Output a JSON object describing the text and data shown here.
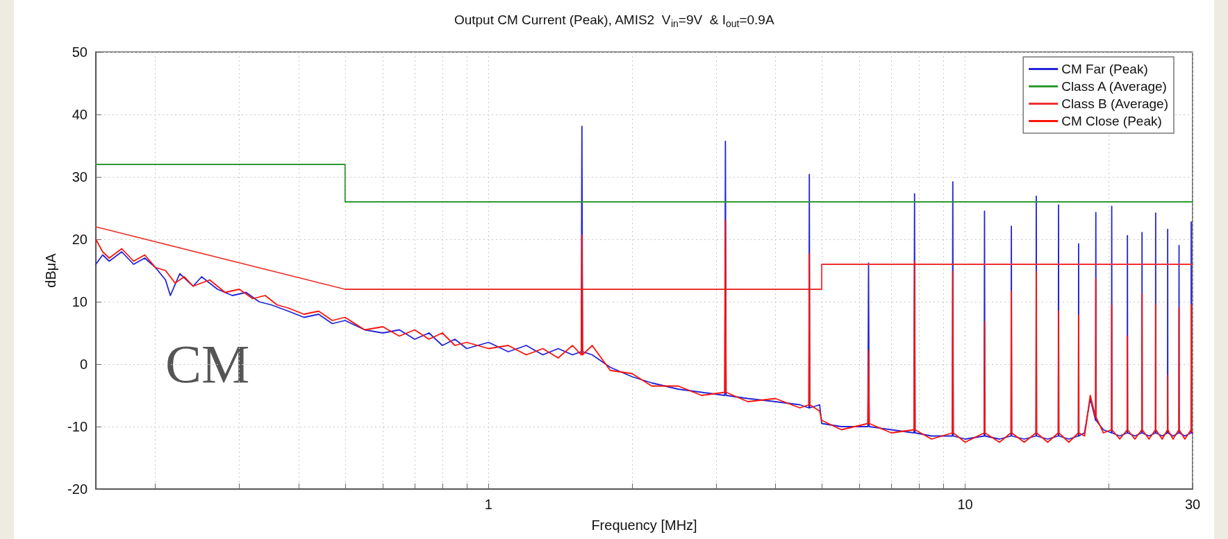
{
  "chart_data": {
    "type": "line",
    "title": "Output CM Current (Peak), AMIS2  V$_{in}$=9V  & I$_{out}$=0.9A",
    "xlabel": "Frequency [MHz]",
    "ylabel": "dBμA",
    "log": "x",
    "grid": true,
    "legend": "top right",
    "xlim": [
      0.15,
      30
    ],
    "xticks": [
      {
        "value": 0.2,
        "label": null
      },
      {
        "value": 0.3,
        "label": null
      },
      {
        "value": 0.4,
        "label": null
      },
      {
        "value": 0.5,
        "label": null
      },
      {
        "value": 0.6,
        "label": null
      },
      {
        "value": 0.7,
        "label": null
      },
      {
        "value": 0.8,
        "label": null
      },
      {
        "value": 0.9,
        "label": null
      },
      1,
      {
        "value": 2,
        "label": null
      },
      {
        "value": 3,
        "label": null
      },
      {
        "value": 4,
        "label": null
      },
      {
        "value": 5,
        "label": null
      },
      {
        "value": 6,
        "label": null
      },
      {
        "value": 7,
        "label": null
      },
      {
        "value": 8,
        "label": null
      },
      {
        "value": 9,
        "label": null
      },
      10,
      {
        "value": 20,
        "label": null
      },
      30
    ],
    "ylim": [
      -20,
      50
    ],
    "yticks": [
      -20,
      -10,
      0,
      10,
      20,
      30,
      40,
      50
    ],
    "annotations": [
      "CM"
    ],
    "series": [
      {
        "name": "CM Far (Peak)",
        "color": "#2323d8",
        "x": [
          0.15,
          0.155,
          0.16,
          0.17,
          0.18,
          0.19,
          0.2,
          0.21,
          0.215,
          0.225,
          0.24,
          0.25,
          0.27,
          0.29,
          0.31,
          0.33,
          0.35,
          0.38,
          0.41,
          0.44,
          0.47,
          0.5,
          0.55,
          0.6,
          0.65,
          0.7,
          0.75,
          0.8,
          0.85,
          0.9,
          1.0,
          1.1,
          1.2,
          1.3,
          1.4,
          1.5,
          1.565,
          1.57,
          1.575,
          1.65,
          1.8,
          2.0,
          2.2,
          2.5,
          2.8,
          3.13,
          3.14,
          3.15,
          3.5,
          4.0,
          4.5,
          4.7,
          4.71,
          4.72,
          4.95,
          5.0,
          5.5,
          6.25,
          6.27,
          6.29,
          7.0,
          7.81,
          7.83,
          7.85,
          8.5,
          9.4,
          9.42,
          9.44,
          10.0,
          10.96,
          10.98,
          11.0,
          11.8,
          12.48,
          12.5,
          12.52,
          13.3,
          14.08,
          14.1,
          14.12,
          14.9,
          15.68,
          15.7,
          15.72,
          16.5,
          17.28,
          17.3,
          17.32,
          17.8,
          18.3,
          18.78,
          18.8,
          18.82,
          19.5,
          20.28,
          20.3,
          20.32,
          21.1,
          21.88,
          21.9,
          21.92,
          22.7,
          23.48,
          23.5,
          23.52,
          24.3,
          25.08,
          25.1,
          25.12,
          25.9,
          26.58,
          26.6,
          26.62,
          27.3,
          28.08,
          28.1,
          28.12,
          28.9,
          29.78,
          29.8,
          29.82,
          30
        ],
        "values": [
          16,
          17.5,
          16.5,
          18,
          16,
          17,
          15.5,
          13.5,
          11,
          14.5,
          12.5,
          14,
          12,
          11,
          11.5,
          10,
          9.5,
          8.5,
          7.5,
          8,
          6.5,
          7,
          5.5,
          5,
          5.5,
          4,
          5,
          3,
          4,
          2.5,
          3.5,
          2,
          3,
          1.5,
          2.5,
          1.5,
          2,
          38.1,
          2,
          1.5,
          -0.5,
          -2,
          -3,
          -4,
          -4.5,
          -5,
          35.7,
          -5,
          -5.5,
          -6,
          -6.5,
          -7,
          30.4,
          -7,
          -6.5,
          -9.5,
          -10,
          -10,
          16.2,
          -10,
          -10.5,
          -11,
          27.3,
          -11,
          -11.5,
          -11.5,
          29.2,
          -11.5,
          -12,
          -11.5,
          24.5,
          -11.5,
          -12,
          -11.5,
          22.1,
          -11.5,
          -12,
          -11.5,
          26.9,
          -11.5,
          -12,
          -11.5,
          25.5,
          -11.5,
          -12,
          -11.5,
          19.3,
          -11.5,
          -11,
          -5.5,
          -9,
          24.3,
          -9,
          -10.5,
          -11,
          25.3,
          -11,
          -11.5,
          -11,
          20.6,
          -11,
          -11.5,
          -11,
          21.1,
          -11,
          -11.5,
          -11,
          24.2,
          -11,
          -11.5,
          -11,
          21.6,
          -11,
          -11.5,
          -11,
          19,
          -11,
          -11.5,
          -11,
          22.8,
          -11,
          -11
        ]
      },
      {
        "name": "Class A (Average)",
        "color": "#2e9a2e",
        "x": [
          0.15,
          0.5,
          0.5,
          30
        ],
        "values": [
          32,
          32,
          26,
          26
        ]
      },
      {
        "name": "Class B (Average)",
        "color": "#ee3030",
        "x": [
          0.15,
          0.5,
          5,
          5,
          30
        ],
        "values": [
          22,
          12,
          12,
          16,
          16
        ]
      },
      {
        "name": "CM Close (Peak)",
        "color": "#fa1409",
        "x": [
          0.15,
          0.155,
          0.16,
          0.17,
          0.18,
          0.19,
          0.2,
          0.21,
          0.22,
          0.23,
          0.24,
          0.26,
          0.28,
          0.3,
          0.32,
          0.34,
          0.36,
          0.38,
          0.41,
          0.44,
          0.47,
          0.5,
          0.55,
          0.6,
          0.65,
          0.7,
          0.75,
          0.8,
          0.85,
          0.9,
          1.0,
          1.1,
          1.2,
          1.3,
          1.4,
          1.5,
          1.565,
          1.57,
          1.575,
          1.65,
          1.8,
          2.0,
          2.2,
          2.5,
          2.8,
          3.13,
          3.14,
          3.15,
          3.5,
          4.0,
          4.5,
          4.7,
          4.71,
          4.72,
          4.95,
          5.0,
          5.5,
          6.25,
          6.27,
          6.29,
          7.0,
          7.81,
          7.83,
          7.85,
          8.5,
          9.4,
          9.42,
          9.44,
          10.0,
          10.96,
          10.98,
          11.0,
          11.8,
          12.48,
          12.5,
          12.52,
          13.3,
          14.08,
          14.1,
          14.12,
          14.9,
          15.68,
          15.7,
          15.72,
          16.5,
          17.28,
          17.3,
          17.32,
          17.8,
          18.3,
          18.78,
          18.8,
          18.82,
          19.5,
          20.28,
          20.3,
          20.32,
          21.1,
          21.88,
          21.9,
          21.92,
          22.7,
          23.48,
          23.5,
          23.52,
          24.3,
          25.08,
          25.1,
          25.12,
          25.9,
          26.58,
          26.6,
          26.62,
          27.3,
          28.08,
          28.1,
          28.12,
          28.9,
          29.78,
          29.8,
          29.82,
          30
        ],
        "values": [
          20,
          18,
          17,
          18.5,
          16.5,
          17.5,
          15.5,
          15,
          13,
          14,
          12.5,
          13.5,
          11.5,
          12,
          10.5,
          11,
          9.5,
          9,
          8,
          8.5,
          7,
          7.5,
          5.5,
          6,
          4.5,
          5.5,
          4,
          5,
          3,
          3.5,
          2.5,
          3,
          1.5,
          2.5,
          1,
          3,
          1.5,
          20.7,
          1.5,
          3,
          -1,
          -1.5,
          -3.5,
          -3.5,
          -5,
          -4.5,
          23,
          -4.5,
          -6,
          -5.5,
          -7,
          -6.5,
          17.7,
          -6.5,
          -7.5,
          -9,
          -10.5,
          -9.5,
          2.2,
          -9.5,
          -11,
          -10.5,
          16.5,
          -10.5,
          -12,
          -11,
          14.9,
          -11,
          -12.5,
          -11,
          6.8,
          -11,
          -12.5,
          -11,
          11.7,
          -11,
          -12.5,
          -11,
          14.9,
          -11,
          -12.5,
          -11,
          8.5,
          -11,
          -12.5,
          -11,
          7.9,
          -11,
          -11.5,
          -5,
          -8.5,
          13.7,
          -8.5,
          -11,
          -10.5,
          9.5,
          -10.5,
          -12,
          -10.5,
          4.5,
          -10.5,
          -12,
          -10.5,
          11.2,
          -10.5,
          -12,
          -10.5,
          9.5,
          -10.5,
          -12,
          -10.5,
          -1.8,
          -10.5,
          -12,
          -10.5,
          9,
          -10.5,
          -12,
          -10.5,
          9.5,
          -10.5,
          -11
        ]
      }
    ]
  }
}
